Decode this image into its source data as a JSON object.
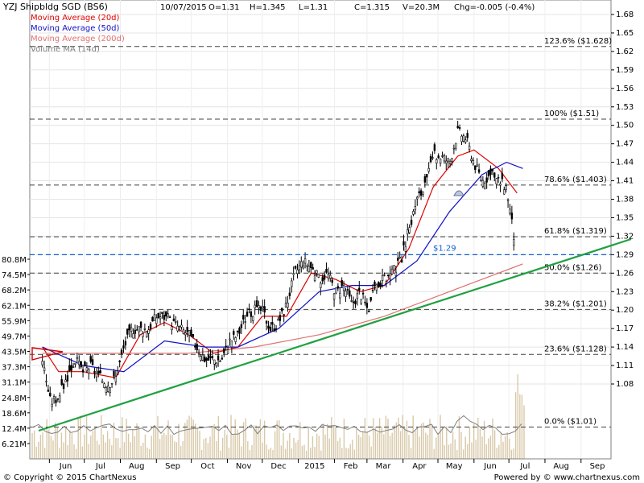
{
  "header": {
    "title": "YZJ Shipbldg SGD (BS6)",
    "date": "10/07/2015",
    "open": "O=1.31",
    "high": "H=1.345",
    "low": "L=1.31",
    "close": "C=1.315",
    "volume": "V=20.3M",
    "change": "Chg=-0.005 (-0.4%)"
  },
  "legend": [
    {
      "label": "Moving Average (20d)",
      "color": "#e00000"
    },
    {
      "label": "Moving Average (50d)",
      "color": "#1010c8"
    },
    {
      "label": "Moving Average (200d)",
      "color": "#e07070"
    },
    {
      "label": "Volume MA (14d)",
      "color": "#808080"
    }
  ],
  "footer": {
    "copyright": "© Copyright © 2015 ChartNexus",
    "powered": "Powered by © www.chartnexus.com"
  },
  "chart_data": {
    "type": "candlestick",
    "price_axis": {
      "range": [
        1.05,
        1.68
      ],
      "ticks": [
        "1.68",
        "1.65",
        "1.62",
        "1.59",
        "1.56",
        "1.53",
        "1.50",
        "1.47",
        "1.44",
        "1.41",
        "1.38",
        "1.35",
        "1.32",
        "1.29",
        "1.26",
        "1.23",
        "1.20",
        "1.17",
        "1.14",
        "1.11",
        "1.08"
      ]
    },
    "volume_axis": {
      "ticks": [
        "80.8M",
        "74.5M",
        "68.2M",
        "62.1M",
        "55.9M",
        "49.7M",
        "43.5M",
        "37.3M",
        "31.1M",
        "24.8M",
        "18.6M",
        "12.4M",
        "6.21M"
      ]
    },
    "x_axis": {
      "labels": [
        "Jun",
        "Jul",
        "Aug",
        "Sep",
        "Oct",
        "Nov",
        "Dec",
        "2015",
        "Feb",
        "Mar",
        "Apr",
        "May",
        "Jun",
        "Jul",
        "Aug",
        "Sep"
      ]
    },
    "fib_levels": [
      {
        "label": "123.6%  ($1.628)",
        "price": 1.628
      },
      {
        "label": "100%  ($1.51)",
        "price": 1.51
      },
      {
        "label": "78.6%  ($1.403)",
        "price": 1.403
      },
      {
        "label": "61.8%  ($1.319)",
        "price": 1.319
      },
      {
        "label": "50.0%  ($1.26)",
        "price": 1.26
      },
      {
        "label": "38.2%  ($1.201)",
        "price": 1.201
      },
      {
        "label": "23.6%  ($1.128)",
        "price": 1.128
      },
      {
        "label": "0.0%  ($1.01)",
        "price": 1.01
      }
    ],
    "support_line": {
      "label": "$1.29",
      "price": 1.29,
      "color": "#1060d0"
    },
    "trendline": {
      "from": [
        "2014-05",
        1.01
      ],
      "to": [
        "2015-09",
        1.31
      ],
      "color": "#20a040"
    },
    "series": [
      {
        "name": "Price",
        "points": [
          [
            "2014-05-26",
            1.12
          ],
          [
            "2014-06-02",
            1.05
          ],
          [
            "2014-06-09",
            1.06
          ],
          [
            "2014-06-16",
            1.09
          ],
          [
            "2014-06-23",
            1.12
          ],
          [
            "2014-06-30",
            1.1
          ],
          [
            "2014-07-07",
            1.11
          ],
          [
            "2014-07-14",
            1.09
          ],
          [
            "2014-07-21",
            1.08
          ],
          [
            "2014-07-28",
            1.09
          ],
          [
            "2014-08-04",
            1.14
          ],
          [
            "2014-08-11",
            1.17
          ],
          [
            "2014-08-18",
            1.17
          ],
          [
            "2014-08-25",
            1.17
          ],
          [
            "2014-09-01",
            1.19
          ],
          [
            "2014-09-08",
            1.19
          ],
          [
            "2014-09-15",
            1.18
          ],
          [
            "2014-09-22",
            1.17
          ],
          [
            "2014-09-29",
            1.16
          ],
          [
            "2014-10-06",
            1.14
          ],
          [
            "2014-10-13",
            1.12
          ],
          [
            "2014-10-20",
            1.12
          ],
          [
            "2014-10-27",
            1.12
          ],
          [
            "2014-11-03",
            1.15
          ],
          [
            "2014-11-10",
            1.16
          ],
          [
            "2014-11-17",
            1.19
          ],
          [
            "2014-11-24",
            1.2
          ],
          [
            "2014-12-01",
            1.2
          ],
          [
            "2014-12-08",
            1.17
          ],
          [
            "2014-12-15",
            1.18
          ],
          [
            "2014-12-22",
            1.21
          ],
          [
            "2014-12-29",
            1.26
          ],
          [
            "2015-01-05",
            1.28
          ],
          [
            "2015-01-12",
            1.27
          ],
          [
            "2015-01-19",
            1.25
          ],
          [
            "2015-01-26",
            1.26
          ],
          [
            "2015-02-02",
            1.23
          ],
          [
            "2015-02-09",
            1.24
          ],
          [
            "2015-02-16",
            1.21
          ],
          [
            "2015-02-23",
            1.23
          ],
          [
            "2015-03-02",
            1.2
          ],
          [
            "2015-03-09",
            1.24
          ],
          [
            "2015-03-16",
            1.25
          ],
          [
            "2015-03-23",
            1.26
          ],
          [
            "2015-03-30",
            1.28
          ],
          [
            "2015-04-06",
            1.33
          ],
          [
            "2015-04-13",
            1.38
          ],
          [
            "2015-04-20",
            1.4
          ],
          [
            "2015-04-27",
            1.45
          ],
          [
            "2015-05-04",
            1.45
          ],
          [
            "2015-05-11",
            1.44
          ],
          [
            "2015-05-18",
            1.49
          ],
          [
            "2015-05-25",
            1.48
          ],
          [
            "2015-06-01",
            1.44
          ],
          [
            "2015-06-08",
            1.41
          ],
          [
            "2015-06-15",
            1.42
          ],
          [
            "2015-06-22",
            1.41
          ],
          [
            "2015-06-29",
            1.4
          ],
          [
            "2015-07-06",
            1.31
          ]
        ]
      },
      {
        "name": "Moving Average (20d)",
        "points": [
          [
            "2014-05-26",
            1.14
          ],
          [
            "2014-06-09",
            1.1
          ],
          [
            "2014-06-30",
            1.1
          ],
          [
            "2014-07-28",
            1.09
          ],
          [
            "2014-08-18",
            1.16
          ],
          [
            "2014-09-08",
            1.18
          ],
          [
            "2014-09-29",
            1.16
          ],
          [
            "2014-10-20",
            1.13
          ],
          [
            "2014-11-10",
            1.14
          ],
          [
            "2014-12-01",
            1.19
          ],
          [
            "2014-12-22",
            1.19
          ],
          [
            "2015-01-12",
            1.26
          ],
          [
            "2015-02-02",
            1.25
          ],
          [
            "2015-02-23",
            1.23
          ],
          [
            "2015-03-16",
            1.24
          ],
          [
            "2015-04-06",
            1.3
          ],
          [
            "2015-04-27",
            1.4
          ],
          [
            "2015-05-18",
            1.45
          ],
          [
            "2015-06-01",
            1.46
          ],
          [
            "2015-06-22",
            1.43
          ],
          [
            "2015-07-08",
            1.39
          ]
        ]
      },
      {
        "name": "Moving Average (50d)",
        "points": [
          [
            "2014-05-26",
            1.14
          ],
          [
            "2014-06-30",
            1.11
          ],
          [
            "2014-08-04",
            1.1
          ],
          [
            "2014-09-08",
            1.15
          ],
          [
            "2014-10-13",
            1.14
          ],
          [
            "2014-11-10",
            1.14
          ],
          [
            "2014-12-15",
            1.17
          ],
          [
            "2015-01-19",
            1.23
          ],
          [
            "2015-02-16",
            1.24
          ],
          [
            "2015-03-16",
            1.24
          ],
          [
            "2015-04-13",
            1.28
          ],
          [
            "2015-05-11",
            1.36
          ],
          [
            "2015-06-08",
            1.42
          ],
          [
            "2015-06-29",
            1.44
          ],
          [
            "2015-07-13",
            1.43
          ]
        ]
      },
      {
        "name": "Moving Average (200d)",
        "points": [
          [
            "2014-05-26",
            1.13
          ],
          [
            "2014-07-28",
            1.13
          ],
          [
            "2014-09-29",
            1.13
          ],
          [
            "2014-11-24",
            1.14
          ],
          [
            "2015-01-19",
            1.16
          ],
          [
            "2015-03-16",
            1.19
          ],
          [
            "2015-04-27",
            1.22
          ],
          [
            "2015-05-25",
            1.24
          ],
          [
            "2015-06-22",
            1.26
          ],
          [
            "2015-07-13",
            1.275
          ]
        ]
      }
    ]
  }
}
